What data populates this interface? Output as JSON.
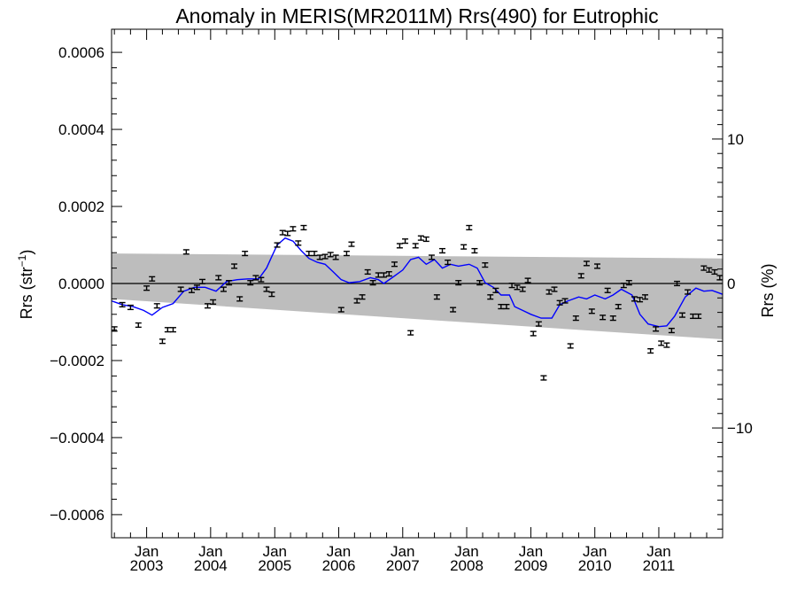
{
  "chart_data": {
    "type": "scatter",
    "title": "Anomaly in MERIS(MR2011M) Rrs(490) for Eutrophic",
    "ylabel": {
      "base": "Rrs (str",
      "sup": "−1",
      "tail": ")"
    },
    "ylabel_right": "Rrs (%)",
    "xlim": [
      "2002-06-15",
      "2011-12-31"
    ],
    "ylim": [
      -0.00066,
      0.00066
    ],
    "ylim_right": [
      -17.6,
      17.6
    ],
    "yticks": [
      {
        "value": 0.0006,
        "label": "0.0006"
      },
      {
        "value": 0.0004,
        "label": "0.0004"
      },
      {
        "value": 0.0002,
        "label": "0.0002"
      },
      {
        "value": 0.0,
        "label": "0.0000"
      },
      {
        "value": -0.0002,
        "label": "−0.0002"
      },
      {
        "value": -0.0004,
        "label": "−0.0004"
      },
      {
        "value": -0.0006,
        "label": "−0.0006"
      }
    ],
    "yticks_right": [
      {
        "value": 10,
        "label": "10"
      },
      {
        "value": 0,
        "label": "0"
      },
      {
        "value": -10,
        "label": "−10"
      }
    ],
    "xticks": [
      {
        "date": "2003-01-01",
        "line1": "Jan",
        "line2": "2003"
      },
      {
        "date": "2004-01-01",
        "line1": "Jan",
        "line2": "2004"
      },
      {
        "date": "2005-01-01",
        "line1": "Jan",
        "line2": "2005"
      },
      {
        "date": "2006-01-01",
        "line1": "Jan",
        "line2": "2006"
      },
      {
        "date": "2007-01-01",
        "line1": "Jan",
        "line2": "2007"
      },
      {
        "date": "2008-01-01",
        "line1": "Jan",
        "line2": "2008"
      },
      {
        "date": "2009-01-01",
        "line1": "Jan",
        "line2": "2009"
      },
      {
        "date": "2010-01-01",
        "line1": "Jan",
        "line2": "2010"
      },
      {
        "date": "2011-01-01",
        "line1": "Jan",
        "line2": "2011"
      }
    ],
    "band": {
      "upper": [
        [
          "2002-06-15",
          7.8e-05
        ],
        [
          "2011-12-31",
          6.5e-05
        ]
      ],
      "lower": [
        [
          "2002-06-15",
          -4e-05
        ],
        [
          "2011-12-31",
          -0.000145
        ]
      ]
    },
    "zero_line": 0.0,
    "running_mean": [
      [
        "2002-06-15",
        -4.5e-05
      ],
      [
        "2002-08-15",
        -5.5e-05
      ],
      [
        "2002-10-15",
        -6e-05
      ],
      [
        "2002-12-15",
        -7e-05
      ],
      [
        "2003-02-01",
        -8.2e-05
      ],
      [
        "2003-04-01",
        -6.2e-05
      ],
      [
        "2003-06-01",
        -5.2e-05
      ],
      [
        "2003-08-01",
        -2e-05
      ],
      [
        "2003-10-01",
        -1e-05
      ],
      [
        "2003-12-01",
        -1e-05
      ],
      [
        "2004-02-01",
        -2e-05
      ],
      [
        "2004-04-01",
        5e-06
      ],
      [
        "2004-06-01",
        1e-05
      ],
      [
        "2004-08-01",
        1.2e-05
      ],
      [
        "2004-10-01",
        1.2e-05
      ],
      [
        "2004-11-15",
        4e-05
      ],
      [
        "2004-12-15",
        7e-05
      ],
      [
        "2005-01-15",
        0.0001
      ],
      [
        "2005-03-01",
        0.000118
      ],
      [
        "2005-04-15",
        0.00011
      ],
      [
        "2005-06-01",
        8.5e-05
      ],
      [
        "2005-07-15",
        6.5e-05
      ],
      [
        "2005-09-01",
        5.5e-05
      ],
      [
        "2005-10-15",
        5e-05
      ],
      [
        "2005-12-01",
        3e-05
      ],
      [
        "2006-01-15",
        1e-05
      ],
      [
        "2006-03-01",
        2e-06
      ],
      [
        "2006-05-01",
        5e-06
      ],
      [
        "2006-07-01",
        1.5e-05
      ],
      [
        "2006-08-15",
        1e-05
      ],
      [
        "2006-09-15",
        0.0
      ],
      [
        "2006-11-01",
        1.5e-05
      ],
      [
        "2007-01-01",
        3.5e-05
      ],
      [
        "2007-02-15",
        6.2e-05
      ],
      [
        "2007-04-01",
        6.8e-05
      ],
      [
        "2007-05-15",
        5e-05
      ],
      [
        "2007-07-01",
        6.2e-05
      ],
      [
        "2007-08-15",
        4e-05
      ],
      [
        "2007-10-01",
        5e-05
      ],
      [
        "2007-11-15",
        4.5e-05
      ],
      [
        "2008-01-15",
        5e-05
      ],
      [
        "2008-03-01",
        4e-05
      ],
      [
        "2008-04-15",
        2e-06
      ],
      [
        "2008-06-01",
        -1e-05
      ],
      [
        "2008-07-15",
        -3e-05
      ],
      [
        "2008-09-01",
        -3e-05
      ],
      [
        "2008-10-01",
        -6e-05
      ],
      [
        "2008-11-15",
        -7e-05
      ],
      [
        "2009-01-01",
        -8e-05
      ],
      [
        "2009-03-01",
        -9e-05
      ],
      [
        "2009-05-01",
        -9e-05
      ],
      [
        "2009-06-15",
        -5.5e-05
      ],
      [
        "2009-08-01",
        -4.5e-05
      ],
      [
        "2009-10-01",
        -3.5e-05
      ],
      [
        "2009-11-15",
        -4e-05
      ],
      [
        "2010-01-01",
        -3e-05
      ],
      [
        "2010-03-01",
        -4e-05
      ],
      [
        "2010-04-15",
        -3e-05
      ],
      [
        "2010-06-01",
        -1.5e-05
      ],
      [
        "2010-08-01",
        -3e-05
      ],
      [
        "2010-09-15",
        -8e-05
      ],
      [
        "2010-11-01",
        -0.000105
      ],
      [
        "2011-01-01",
        -0.000112
      ],
      [
        "2011-02-15",
        -0.00011
      ],
      [
        "2011-04-01",
        -8.5e-05
      ],
      [
        "2011-06-01",
        -3.5e-05
      ],
      [
        "2011-08-01",
        -1.2e-05
      ],
      [
        "2011-09-15",
        -2e-05
      ],
      [
        "2011-11-01",
        -1.8e-05
      ],
      [
        "2011-12-31",
        -2.8e-05
      ]
    ],
    "points": [
      [
        "2002-07-01",
        -0.000118
      ],
      [
        "2002-08-15",
        -5.5e-05
      ],
      [
        "2002-10-01",
        -6.2e-05
      ],
      [
        "2002-11-15",
        -0.000108
      ],
      [
        "2003-01-01",
        -1.2e-05
      ],
      [
        "2003-02-01",
        1.2e-05
      ],
      [
        "2003-03-01",
        -5.8e-05
      ],
      [
        "2003-04-01",
        -0.00015
      ],
      [
        "2003-05-01",
        -0.00012
      ],
      [
        "2003-06-01",
        -0.00012
      ],
      [
        "2003-07-15",
        -1.5e-05
      ],
      [
        "2003-08-15",
        8.2e-05
      ],
      [
        "2003-09-15",
        -1.8e-05
      ],
      [
        "2003-10-15",
        -1e-05
      ],
      [
        "2003-11-15",
        5e-06
      ],
      [
        "2003-12-15",
        -5.8e-05
      ],
      [
        "2004-01-15",
        -4.8e-05
      ],
      [
        "2004-02-15",
        1.5e-05
      ],
      [
        "2004-03-15",
        -1.5e-05
      ],
      [
        "2004-04-15",
        2e-06
      ],
      [
        "2004-05-15",
        4.5e-05
      ],
      [
        "2004-06-15",
        -4e-05
      ],
      [
        "2004-07-15",
        7.8e-05
      ],
      [
        "2004-08-15",
        2e-06
      ],
      [
        "2004-09-15",
        1.5e-05
      ],
      [
        "2004-10-15",
        1e-05
      ],
      [
        "2004-11-15",
        -1.5e-05
      ],
      [
        "2004-12-15",
        -2.8e-05
      ],
      [
        "2005-01-15",
        0.0001
      ],
      [
        "2005-02-15",
        0.000132
      ],
      [
        "2005-03-15",
        0.00013
      ],
      [
        "2005-04-15",
        0.000142
      ],
      [
        "2005-05-15",
        0.000105
      ],
      [
        "2005-06-15",
        0.000145
      ],
      [
        "2005-07-15",
        7.8e-05
      ],
      [
        "2005-08-15",
        7.8e-05
      ],
      [
        "2005-09-15",
        6.8e-05
      ],
      [
        "2005-10-15",
        7e-05
      ],
      [
        "2005-11-15",
        7.5e-05
      ],
      [
        "2005-12-15",
        6.8e-05
      ],
      [
        "2006-01-15",
        -6.8e-05
      ],
      [
        "2006-02-15",
        7.8e-05
      ],
      [
        "2006-03-15",
        0.000102
      ],
      [
        "2006-04-15",
        -4.5e-05
      ],
      [
        "2006-05-15",
        -3.5e-05
      ],
      [
        "2006-06-15",
        3e-05
      ],
      [
        "2006-07-15",
        2e-06
      ],
      [
        "2006-08-15",
        2.2e-05
      ],
      [
        "2006-09-15",
        2.2e-05
      ],
      [
        "2006-10-15",
        2.5e-05
      ],
      [
        "2006-11-15",
        5e-05
      ],
      [
        "2006-12-15",
        9.8e-05
      ],
      [
        "2007-01-15",
        0.00011
      ],
      [
        "2007-02-15",
        -0.000128
      ],
      [
        "2007-03-15",
        9.8e-05
      ],
      [
        "2007-04-15",
        0.000118
      ],
      [
        "2007-05-15",
        0.000115
      ],
      [
        "2007-06-15",
        6.8e-05
      ],
      [
        "2007-07-15",
        -3.5e-05
      ],
      [
        "2007-08-15",
        8.5e-05
      ],
      [
        "2007-09-15",
        5.5e-05
      ],
      [
        "2007-10-15",
        -6.8e-05
      ],
      [
        "2007-11-15",
        2e-06
      ],
      [
        "2007-12-15",
        9.5e-05
      ],
      [
        "2008-01-15",
        0.000145
      ],
      [
        "2008-02-15",
        8.5e-05
      ],
      [
        "2008-03-15",
        2e-06
      ],
      [
        "2008-04-15",
        4.8e-05
      ],
      [
        "2008-05-15",
        -3.5e-05
      ],
      [
        "2008-06-15",
        -1.8e-05
      ],
      [
        "2008-07-15",
        -6e-05
      ],
      [
        "2008-08-15",
        -6e-05
      ],
      [
        "2008-09-15",
        -5e-06
      ],
      [
        "2008-10-15",
        -1e-05
      ],
      [
        "2008-11-15",
        -1.5e-05
      ],
      [
        "2008-12-15",
        8e-06
      ],
      [
        "2009-01-15",
        -0.00013
      ],
      [
        "2009-02-15",
        -0.000105
      ],
      [
        "2009-03-15",
        -0.000245
      ],
      [
        "2009-04-15",
        -2.2e-05
      ],
      [
        "2009-05-15",
        -1.5e-05
      ],
      [
        "2009-06-15",
        -5e-05
      ],
      [
        "2009-07-15",
        -4.5e-05
      ],
      [
        "2009-08-15",
        -0.000162
      ],
      [
        "2009-09-15",
        -9e-05
      ],
      [
        "2009-10-15",
        2e-05
      ],
      [
        "2009-11-15",
        5.2e-05
      ],
      [
        "2009-12-15",
        -7.2e-05
      ],
      [
        "2010-01-15",
        4.5e-05
      ],
      [
        "2010-02-15",
        -8.8e-05
      ],
      [
        "2010-03-15",
        -1.8e-05
      ],
      [
        "2010-04-15",
        -9e-05
      ],
      [
        "2010-05-15",
        -6e-05
      ],
      [
        "2010-06-15",
        -5e-06
      ],
      [
        "2010-07-15",
        2e-06
      ],
      [
        "2010-08-15",
        -4e-05
      ],
      [
        "2010-09-15",
        -4.2e-05
      ],
      [
        "2010-10-15",
        -3.5e-05
      ],
      [
        "2010-11-15",
        -0.000175
      ],
      [
        "2010-12-15",
        -0.000118
      ],
      [
        "2011-01-15",
        -0.000155
      ],
      [
        "2011-02-15",
        -0.00016
      ],
      [
        "2011-03-15",
        -0.000122
      ],
      [
        "2011-04-15",
        0.0
      ],
      [
        "2011-05-15",
        -8.2e-05
      ],
      [
        "2011-06-15",
        -2.2e-05
      ],
      [
        "2011-07-15",
        -8.5e-05
      ],
      [
        "2011-08-15",
        -8.5e-05
      ],
      [
        "2011-09-15",
        4e-05
      ],
      [
        "2011-10-15",
        3.5e-05
      ],
      [
        "2011-11-15",
        3e-05
      ],
      [
        "2011-12-15",
        1.5e-05
      ]
    ],
    "error_half_width": 5.5e-06,
    "colors": {
      "band": "#bdbdbd",
      "running_mean": "#0000ff",
      "points": "#000000",
      "axes": "#000000"
    },
    "grid": false,
    "legend": "none"
  }
}
